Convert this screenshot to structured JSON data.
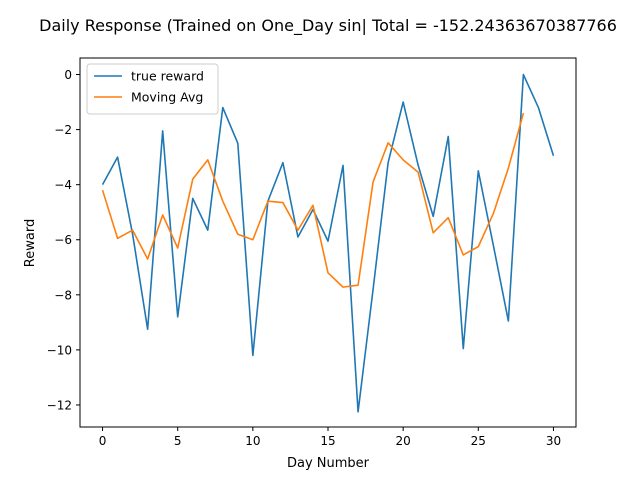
{
  "chart_data": {
    "type": "line",
    "title": "Daily Response (Trained on One_Day sin| Total = -152.24363670387766",
    "xlabel": "Day Number",
    "ylabel": "Reward",
    "xlim": [
      -1.5,
      31.5
    ],
    "ylim": [
      -12.8,
      0.6
    ],
    "x_ticks": [
      0,
      5,
      10,
      15,
      20,
      25,
      30
    ],
    "y_ticks": [
      0,
      -2,
      -4,
      -6,
      -8,
      -10,
      -12
    ],
    "x_tick_labels": [
      "0",
      "5",
      "10",
      "15",
      "20",
      "25",
      "30"
    ],
    "y_tick_labels": [
      "0",
      "−2",
      "−4",
      "−6",
      "−8",
      "−10",
      "−12"
    ],
    "grid": false,
    "legend_position": "top-left",
    "series": [
      {
        "name": "true reward",
        "color": "#1f77b4",
        "x": [
          0,
          1,
          2,
          3,
          4,
          5,
          6,
          7,
          8,
          9,
          10,
          11,
          12,
          13,
          14,
          15,
          16,
          17,
          18,
          19,
          20,
          21,
          22,
          23,
          24,
          25,
          26,
          27,
          28,
          29,
          30
        ],
        "values": [
          -4.0,
          -3.0,
          -5.8,
          -9.25,
          -2.05,
          -8.8,
          -4.5,
          -5.65,
          -1.2,
          -2.5,
          -10.2,
          -4.6,
          -3.2,
          -5.9,
          -4.9,
          -6.05,
          -3.3,
          -12.25,
          -7.8,
          -3.2,
          -1.0,
          -3.3,
          -5.15,
          -2.25,
          -9.95,
          -3.5,
          -6.2,
          -8.95,
          0.0,
          -1.2,
          -2.95
        ]
      },
      {
        "name": "Moving Avg",
        "color": "#ff7f0e",
        "x": [
          0,
          1,
          2,
          3,
          4,
          5,
          6,
          7,
          8,
          9,
          10,
          11,
          12,
          13,
          14,
          15,
          16,
          17,
          18,
          19,
          20,
          21,
          22,
          23,
          24,
          25,
          26,
          27,
          28
        ],
        "values": [
          -4.2,
          -5.95,
          -5.65,
          -6.7,
          -5.1,
          -6.3,
          -3.8,
          -3.1,
          -4.6,
          -5.8,
          -6.0,
          -4.6,
          -4.65,
          -5.65,
          -4.75,
          -7.2,
          -7.72,
          -7.65,
          -3.9,
          -2.48,
          -3.1,
          -3.55,
          -5.75,
          -5.2,
          -6.55,
          -6.25,
          -5.05,
          -3.4,
          -1.4
        ]
      }
    ]
  }
}
